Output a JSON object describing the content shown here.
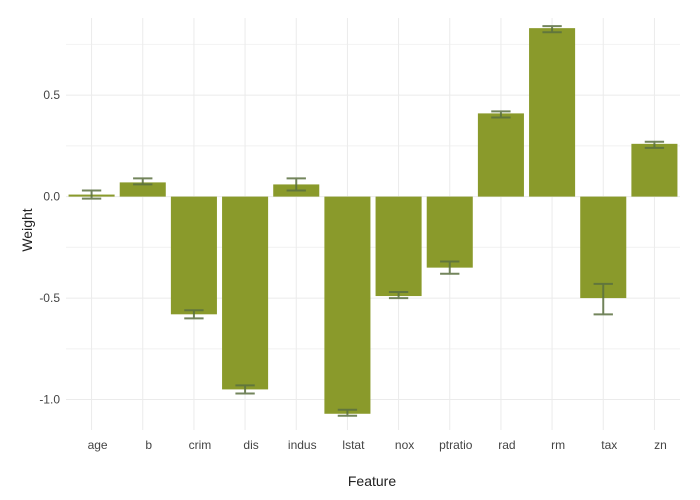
{
  "chart_data": {
    "type": "bar",
    "xlabel": "Feature",
    "ylabel": "Weight",
    "categories": [
      "age",
      "b",
      "crim",
      "dis",
      "indus",
      "lstat",
      "nox",
      "ptratio",
      "rad",
      "rm",
      "tax",
      "zn"
    ],
    "values": [
      0.01,
      0.07,
      -0.58,
      -0.95,
      0.06,
      -1.07,
      -0.49,
      -0.35,
      0.41,
      0.83,
      -0.5,
      0.26
    ],
    "error_low": [
      -0.01,
      0.06,
      -0.6,
      -0.97,
      0.03,
      -1.08,
      -0.5,
      -0.38,
      0.39,
      0.81,
      -0.58,
      0.24
    ],
    "error_high": [
      0.03,
      0.09,
      -0.56,
      -0.93,
      0.09,
      -1.05,
      -0.47,
      -0.32,
      0.42,
      0.84,
      -0.43,
      0.27
    ],
    "yticks": [
      -1.0,
      -0.5,
      0.0,
      0.5
    ],
    "ytick_labels": [
      "-1.0",
      "-0.5",
      "0.0",
      "0.5"
    ],
    "ylim": [
      -1.15,
      0.88
    ],
    "grid": true,
    "colors": {
      "bar": "#8a9a2b",
      "error_bar": "#5b7040",
      "grid": "#ebebeb"
    }
  }
}
